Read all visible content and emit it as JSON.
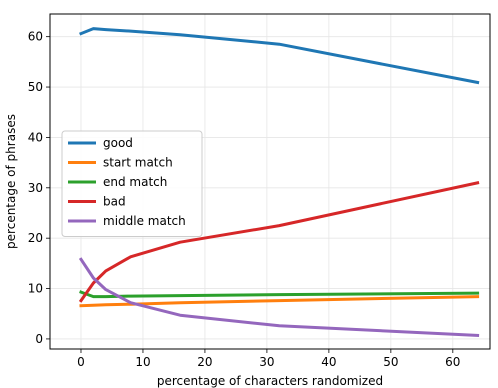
{
  "chart_data": {
    "type": "line",
    "title": "",
    "xlabel": "percentage of characters randomized",
    "ylabel": "percentage of phrases",
    "xlim": [
      -5,
      66
    ],
    "ylim": [
      -2,
      64.5
    ],
    "xticks": [
      0,
      10,
      20,
      30,
      40,
      50,
      60
    ],
    "yticks": [
      0,
      10,
      20,
      30,
      40,
      50,
      60
    ],
    "grid": true,
    "legend_position": "center-left",
    "series": [
      {
        "name": "good",
        "color": "#1f77b4",
        "x": [
          0,
          2,
          4,
          8,
          16,
          32,
          64
        ],
        "y": [
          60.6,
          61.6,
          61.4,
          61.1,
          60.4,
          58.5,
          50.9
        ]
      },
      {
        "name": "start match",
        "color": "#ff7f0e",
        "x": [
          0,
          2,
          4,
          8,
          16,
          32,
          64
        ],
        "y": [
          6.6,
          6.7,
          6.8,
          6.9,
          7.2,
          7.6,
          8.4
        ]
      },
      {
        "name": "end match",
        "color": "#2ca02c",
        "x": [
          0,
          2,
          4,
          8,
          16,
          32,
          64
        ],
        "y": [
          9.3,
          8.4,
          8.4,
          8.5,
          8.6,
          8.8,
          9.1
        ]
      },
      {
        "name": "bad",
        "color": "#d62728",
        "x": [
          0,
          2,
          4,
          8,
          16,
          32,
          64
        ],
        "y": [
          7.6,
          11.1,
          13.5,
          16.3,
          19.2,
          22.5,
          31.0
        ]
      },
      {
        "name": "middle match",
        "color": "#9467bd",
        "x": [
          0,
          2,
          4,
          8,
          16,
          32,
          64
        ],
        "y": [
          15.8,
          12.1,
          9.8,
          7.2,
          4.7,
          2.6,
          0.7
        ]
      }
    ]
  }
}
